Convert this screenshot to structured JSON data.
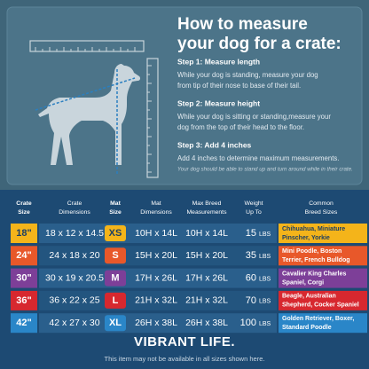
{
  "header": {
    "title_lines": [
      "How to measure",
      "your dog for a crate:"
    ]
  },
  "steps": [
    {
      "heading": "Step 1: Measure length",
      "body_lines": [
        "While your dog is standing, measure your dog",
        "from tip of their nose to base of their tail."
      ]
    },
    {
      "heading": "Step 2: Measure height",
      "body_lines": [
        "While your dog is sitting or standing,measure your",
        "dog from the top of their head to the floor."
      ]
    },
    {
      "heading": "Step 3: Add 4 inches",
      "body_lines": [
        "Add 4 inches to determine maximum measurements."
      ]
    }
  ],
  "note": "Your dog should be able to stand up and turn around while in their crate.",
  "table": {
    "columns": [
      [
        "Crate",
        "Size"
      ],
      [
        "Crate",
        "Dimensions"
      ],
      [
        "Mat",
        "Size"
      ],
      [
        "Mat",
        "Dimensions"
      ],
      [
        "Max Breed",
        "Measurements"
      ],
      [
        "Weight",
        "Up To"
      ],
      [
        "Common",
        "Breed Sizes"
      ]
    ],
    "rows": [
      {
        "crate_size": "18\"",
        "crate_dimensions": "18 x 12 x 14.5",
        "mat_size": "XS",
        "mat_dimensions": "10H x 14L",
        "max_breed": "10H x 14L",
        "weight": "15",
        "weight_unit": "LBS",
        "breeds": [
          "Chihuahua, Miniature",
          "Pinscher, Yorkie"
        ],
        "color": "#f4b41a",
        "text_color": "#1d3f63"
      },
      {
        "crate_size": "24\"",
        "crate_dimensions": "24 x 18 x 20",
        "mat_size": "S",
        "mat_dimensions": "15H x 20L",
        "max_breed": "15H x 20L",
        "weight": "35",
        "weight_unit": "LBS",
        "breeds": [
          "Mini Poodle, Boston",
          "Terrier, French Bulldog"
        ],
        "color": "#e8582a",
        "text_color": "#ffffff"
      },
      {
        "crate_size": "30\"",
        "crate_dimensions": "30 x 19 x 20.5",
        "mat_size": "M",
        "mat_dimensions": "17H x 26L",
        "max_breed": "17H x 26L",
        "weight": "60",
        "weight_unit": "LBS",
        "breeds": [
          "Cavalier King Charles",
          "Spaniel, Corgi"
        ],
        "color": "#7d3f98",
        "text_color": "#ffffff"
      },
      {
        "crate_size": "36\"",
        "crate_dimensions": "36 x 22 x 25",
        "mat_size": "L",
        "mat_dimensions": "21H x 32L",
        "max_breed": "21H x 32L",
        "weight": "70",
        "weight_unit": "LBS",
        "breeds": [
          "Beagle, Australian",
          "Shepherd, Cocker Spaniel"
        ],
        "color": "#d7282f",
        "text_color": "#ffffff"
      },
      {
        "crate_size": "42\"",
        "crate_dimensions": "42 x 27 x 30",
        "mat_size": "XL",
        "mat_dimensions": "26H x 38L",
        "max_breed": "26H x 38L",
        "weight": "100",
        "weight_unit": "LBS",
        "breeds": [
          "Golden Retriever, Boxer,",
          "Standard Poodle"
        ],
        "color": "#2a86c8",
        "text_color": "#ffffff"
      }
    ]
  },
  "footer": {
    "brand": "VIBRANT LIFE.",
    "note": "This item may not be available in all sizes shown here."
  }
}
